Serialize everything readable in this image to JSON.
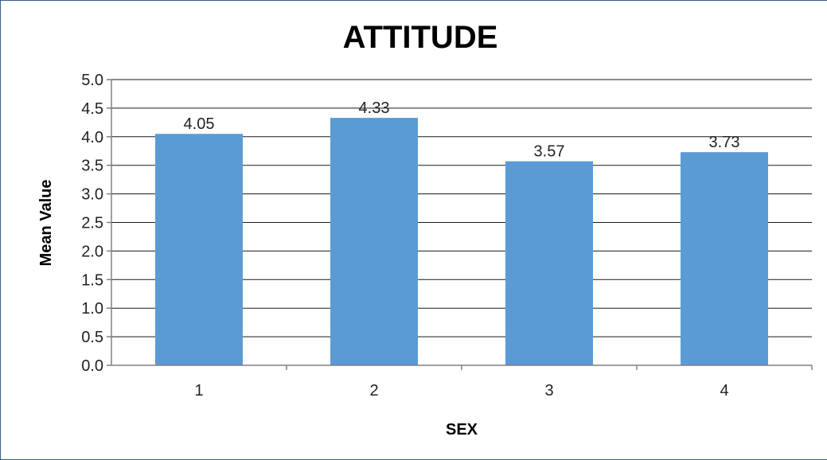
{
  "chart_data": {
    "type": "bar",
    "title": "ATTITUDE",
    "xlabel": "SEX",
    "ylabel": "Mean Value",
    "categories": [
      "1",
      "2",
      "3",
      "4"
    ],
    "values": [
      4.05,
      4.33,
      3.57,
      3.73
    ],
    "data_labels": [
      "4.05",
      "4.33",
      "3.57",
      "3.73"
    ],
    "yticks": [
      "0.0",
      "0.5",
      "1.0",
      "1.5",
      "2.0",
      "2.5",
      "3.0",
      "3.5",
      "4.0",
      "4.5",
      "5.0"
    ],
    "ylim": [
      0,
      5
    ],
    "grid": true,
    "bar_color": "#5b9bd5",
    "legend": "none"
  }
}
